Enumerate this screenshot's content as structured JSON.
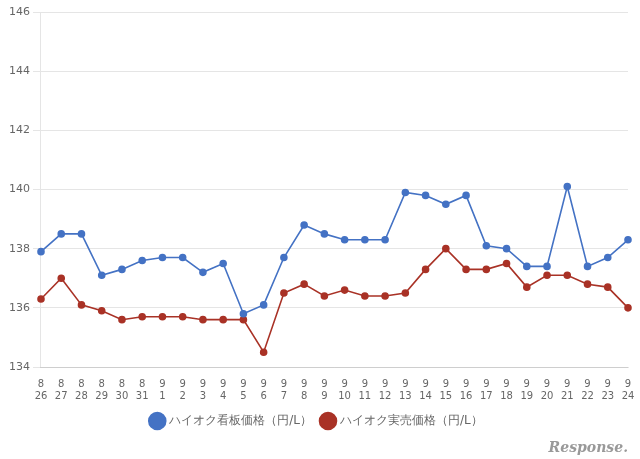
{
  "chart_data": {
    "type": "line",
    "categories": [
      "8\n26",
      "8\n27",
      "8\n28",
      "8\n29",
      "8\n30",
      "8\n31",
      "9\n1",
      "9\n2",
      "9\n3",
      "9\n4",
      "9\n5",
      "9\n6",
      "9\n7",
      "9\n8",
      "9\n9",
      "9\n10",
      "9\n11",
      "9\n12",
      "9\n13",
      "9\n14",
      "9\n15",
      "9\n16",
      "9\n17",
      "9\n18",
      "9\n19",
      "9\n20",
      "9\n21",
      "9\n22",
      "9\n23",
      "9\n24"
    ],
    "series": [
      {
        "name": "ハイオク看板価格（円/L）",
        "color": "#4472c4",
        "marker": "circle",
        "values": [
          137.9,
          138.5,
          138.5,
          137.1,
          137.3,
          137.6,
          137.7,
          137.7,
          137.2,
          137.5,
          135.8,
          136.1,
          137.7,
          138.8,
          138.5,
          138.3,
          138.3,
          138.3,
          139.9,
          139.8,
          139.5,
          139.8,
          138.1,
          138.0,
          137.4,
          137.4,
          140.1,
          137.4,
          137.7,
          138.3
        ]
      },
      {
        "name": "ハイオク実売価格（円/L）",
        "color": "#a93226",
        "marker": "circle",
        "values": [
          136.3,
          137.0,
          136.1,
          135.9,
          135.6,
          135.7,
          135.7,
          135.7,
          135.6,
          135.6,
          135.6,
          134.5,
          136.5,
          136.8,
          136.4,
          136.6,
          136.4,
          136.4,
          136.5,
          137.3,
          138.0,
          137.3,
          137.3,
          137.5,
          136.7,
          137.1,
          137.1,
          136.8,
          136.7,
          136.0
        ]
      }
    ],
    "ylim": [
      134,
      146
    ],
    "yticks": [
      134,
      136,
      138,
      140,
      142,
      144,
      146
    ],
    "grid": true,
    "legend": "bottom",
    "annotations": [
      "Response."
    ]
  }
}
